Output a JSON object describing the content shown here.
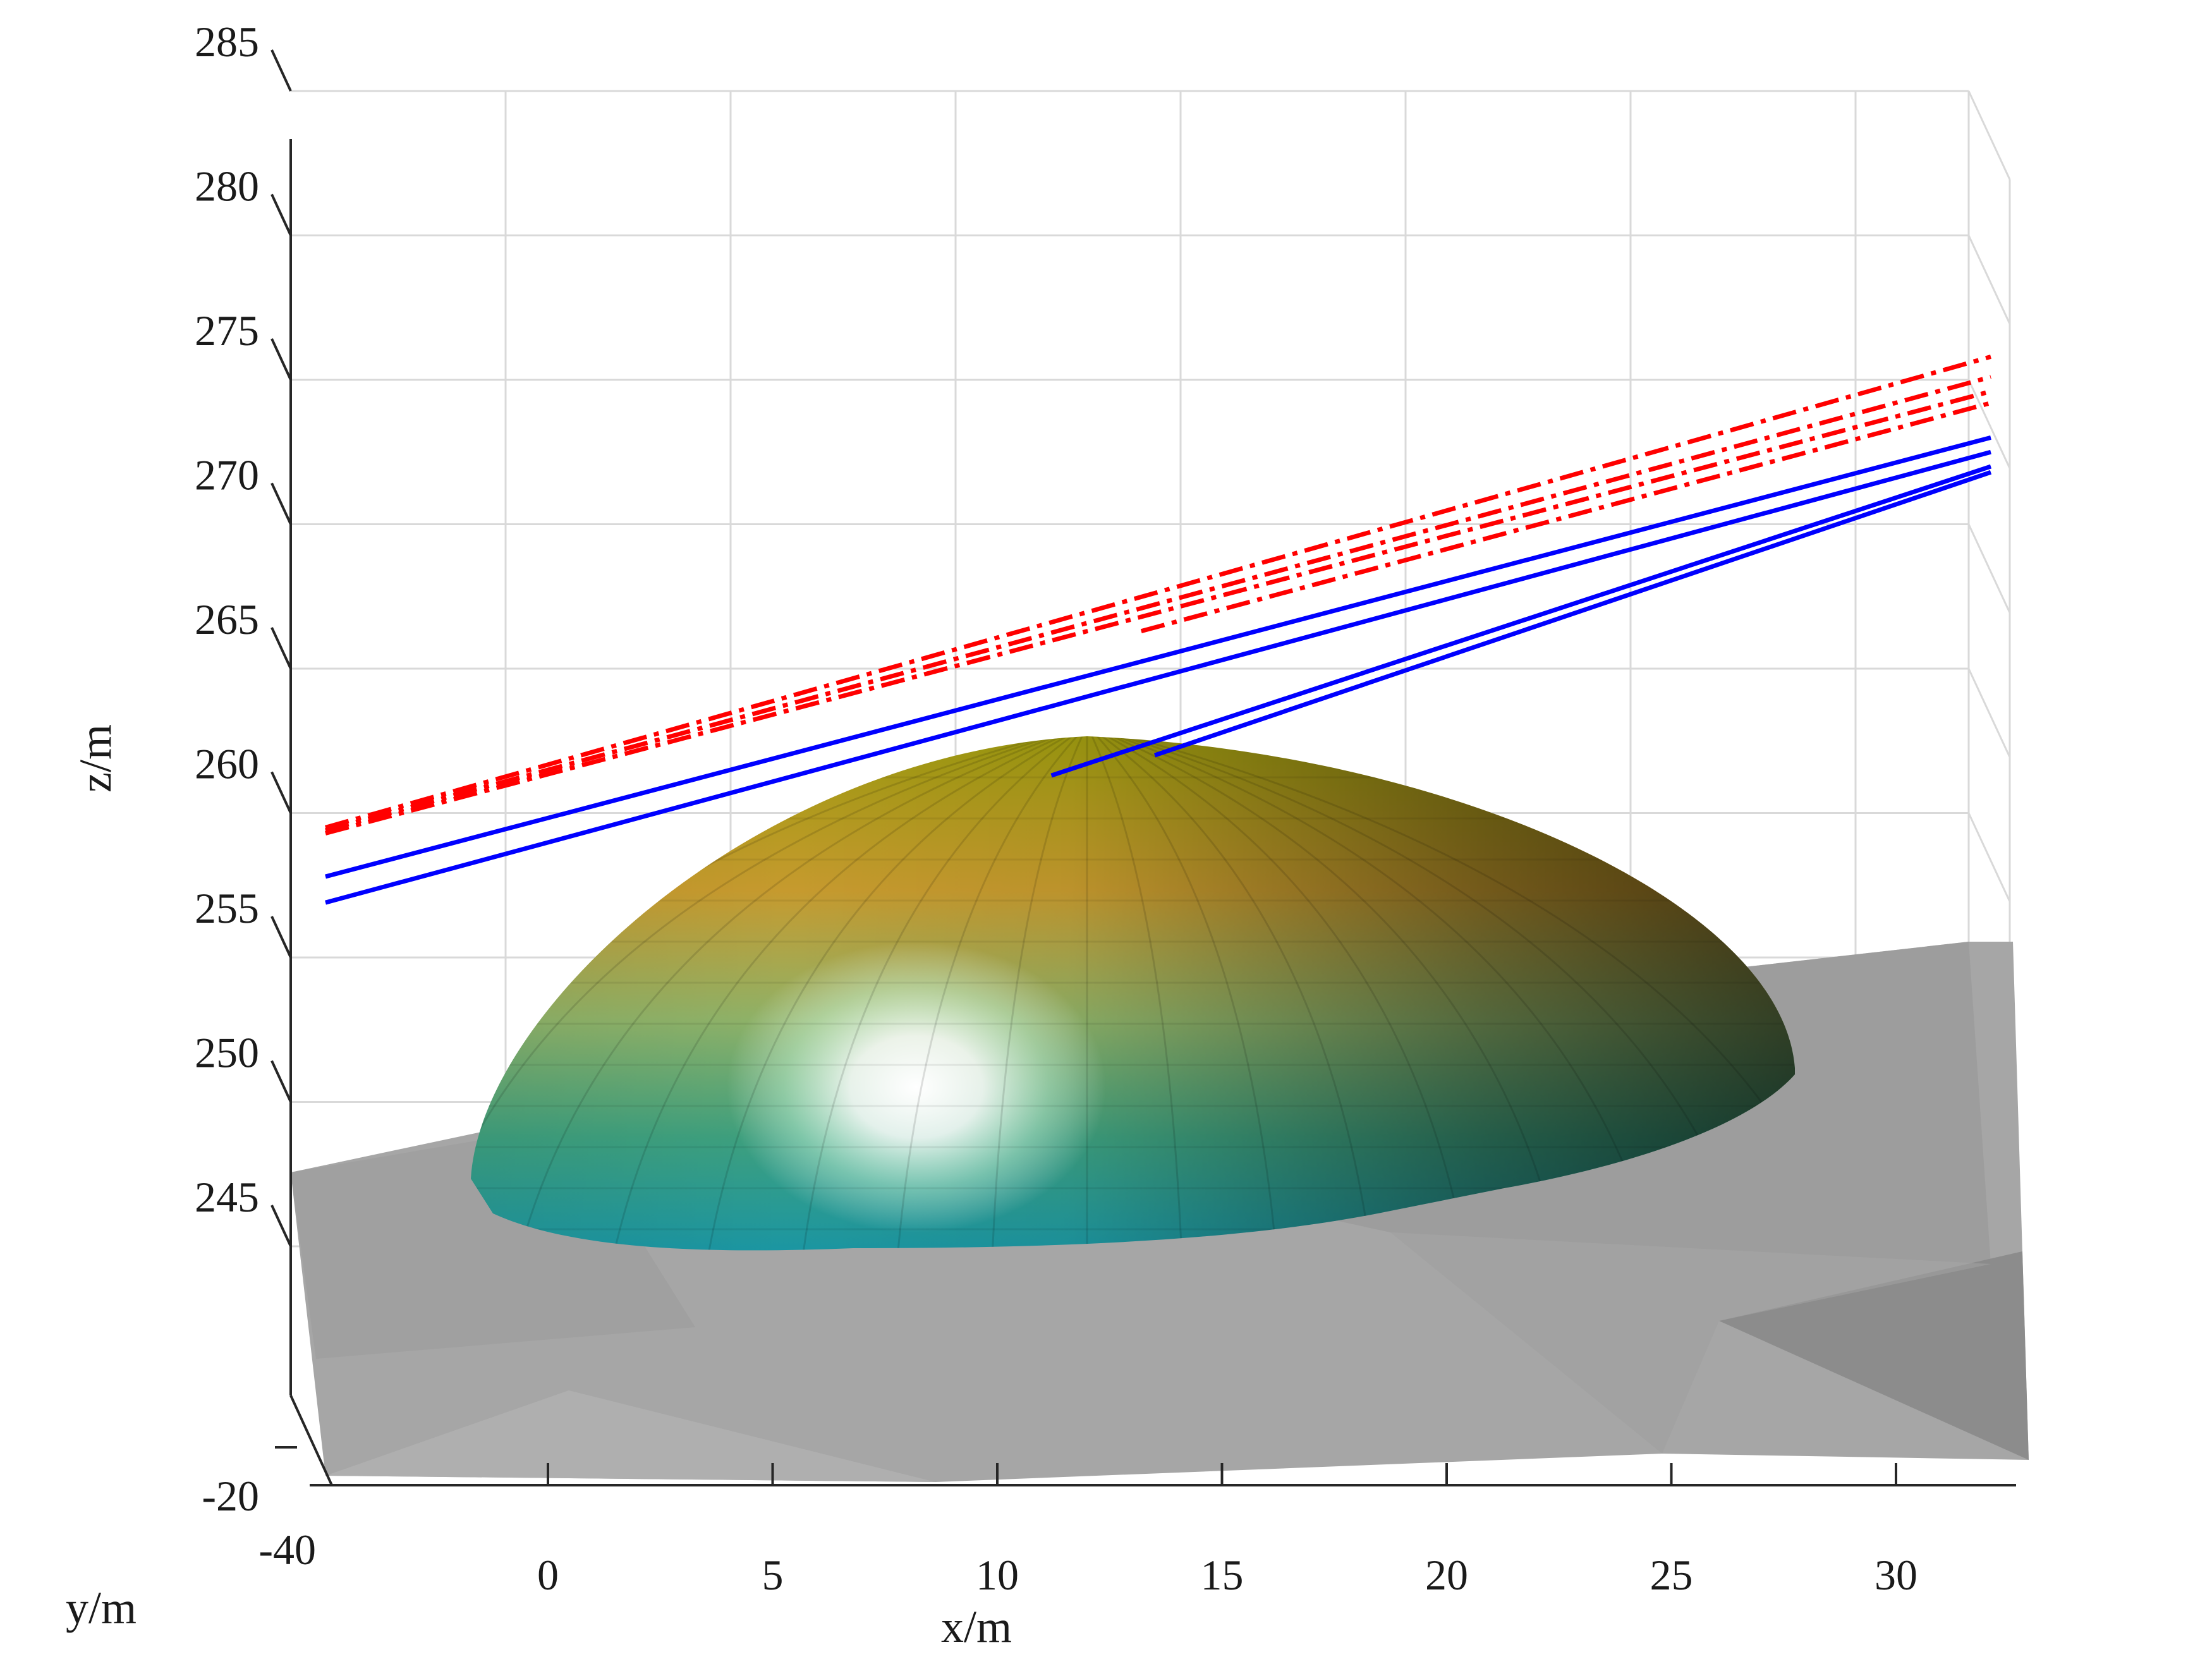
{
  "chart_data": {
    "type": "surface3d",
    "view": "3d-perspective",
    "grid": true,
    "xlabel": "x/m",
    "ylabel": "y/m",
    "zlabel": "z/m",
    "x_ticks": [
      "0",
      "5",
      "10",
      "15",
      "20",
      "25",
      "30"
    ],
    "y_ticks": [
      "-20",
      "-40"
    ],
    "z_ticks": [
      "245",
      "250",
      "255",
      "260",
      "265",
      "270",
      "275",
      "280",
      "285"
    ],
    "xlim": [
      -6,
      32.5
    ],
    "zlim": [
      240,
      285
    ],
    "surfaces": [
      {
        "name": "ground",
        "color": "#a6a6a6",
        "shape": "sloped plane"
      },
      {
        "name": "dome",
        "shape": "half-ellipsoid",
        "colormap": "teal-to-olive",
        "x_range": [
          -2,
          27
        ],
        "z_range": [
          243,
          262
        ]
      }
    ],
    "series": [
      {
        "style": "dash-dot",
        "color": "#ff0000",
        "start": {
          "x": -4.5,
          "z": 259.5
        },
        "end": {
          "x": 32.3,
          "z": 275.8
        }
      },
      {
        "style": "dash-dot",
        "color": "#ff0000",
        "start": {
          "x": -4.5,
          "z": 259.4
        },
        "end": {
          "x": 32.3,
          "z": 275.1
        }
      },
      {
        "style": "dash-dot",
        "color": "#ff0000",
        "start": {
          "x": -4.5,
          "z": 259.3
        },
        "end": {
          "x": 32.3,
          "z": 274.6
        }
      },
      {
        "style": "dash-dot",
        "color": "#ff0000",
        "start": {
          "x": 12.5,
          "z": 266.3
        },
        "end": {
          "x": 32.3,
          "z": 274.2
        }
      },
      {
        "style": "solid",
        "color": "#0000ff",
        "start": {
          "x": -4.5,
          "z": 257.8
        },
        "end": {
          "x": 32.3,
          "z": 273.0
        }
      },
      {
        "style": "solid",
        "color": "#0000ff",
        "start": {
          "x": -4.5,
          "z": 256.9
        },
        "end": {
          "x": 32.3,
          "z": 272.5
        }
      },
      {
        "style": "solid",
        "color": "#0000ff",
        "start": {
          "x": 10.5,
          "z": 261.3
        },
        "end": {
          "x": 32.3,
          "z": 272.0
        }
      },
      {
        "style": "solid",
        "color": "#0000ff",
        "start": {
          "x": 12.8,
          "z": 262.0
        },
        "end": {
          "x": 32.3,
          "z": 271.8
        }
      }
    ]
  }
}
